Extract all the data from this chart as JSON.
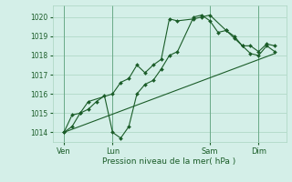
{
  "bg_color": "#d4efe8",
  "grid_color": "#aad4c0",
  "line_color": "#1a5c28",
  "xlabel": "Pression niveau de la mer( hPa )",
  "ylim": [
    1013.5,
    1020.6
  ],
  "xlim": [
    -0.2,
    14.2
  ],
  "yticks": [
    1014,
    1015,
    1016,
    1017,
    1018,
    1019,
    1020
  ],
  "ytick_labels": [
    "1014",
    "1015",
    "1016",
    "1017",
    "1018",
    "1019",
    "1020"
  ],
  "xtick_labels": [
    "Ven",
    "Lun",
    "Sam",
    "Dim"
  ],
  "xtick_positions": [
    0.5,
    3.5,
    9.5,
    12.5
  ],
  "vline_positions": [
    0.5,
    3.5,
    9.5,
    12.5
  ],
  "series1_x": [
    0.5,
    1.0,
    1.5,
    2.0,
    3.5,
    4.0,
    4.5,
    5.0,
    5.5,
    6.0,
    6.5,
    7.0,
    7.5,
    8.5,
    9.0,
    9.5,
    10.5,
    11.0,
    11.5,
    12.0,
    12.5,
    13.0,
    13.5
  ],
  "series1_y": [
    1014.0,
    1014.9,
    1015.0,
    1015.6,
    1016.0,
    1016.6,
    1016.8,
    1017.5,
    1017.1,
    1017.5,
    1017.8,
    1019.9,
    1019.8,
    1019.9,
    1020.0,
    1020.1,
    1019.3,
    1019.0,
    1018.5,
    1018.5,
    1018.2,
    1018.6,
    1018.5
  ],
  "series2_x": [
    0.5,
    1.0,
    1.5,
    2.0,
    2.5,
    3.0,
    3.5,
    4.0,
    4.5,
    5.0,
    5.5,
    6.0,
    6.5,
    7.0,
    7.5,
    8.5,
    9.0,
    9.5,
    10.0,
    10.5,
    11.0,
    11.5,
    12.0,
    12.5,
    13.0,
    13.5
  ],
  "series2_y": [
    1014.0,
    1014.3,
    1015.0,
    1015.2,
    1015.6,
    1015.9,
    1014.0,
    1013.7,
    1014.3,
    1016.0,
    1016.5,
    1016.7,
    1017.3,
    1018.0,
    1018.2,
    1020.0,
    1020.1,
    1019.8,
    1019.2,
    1019.3,
    1018.9,
    1018.5,
    1018.1,
    1018.0,
    1018.5,
    1018.2
  ],
  "trend_x": [
    0.5,
    13.5
  ],
  "trend_y": [
    1014.0,
    1018.1
  ]
}
